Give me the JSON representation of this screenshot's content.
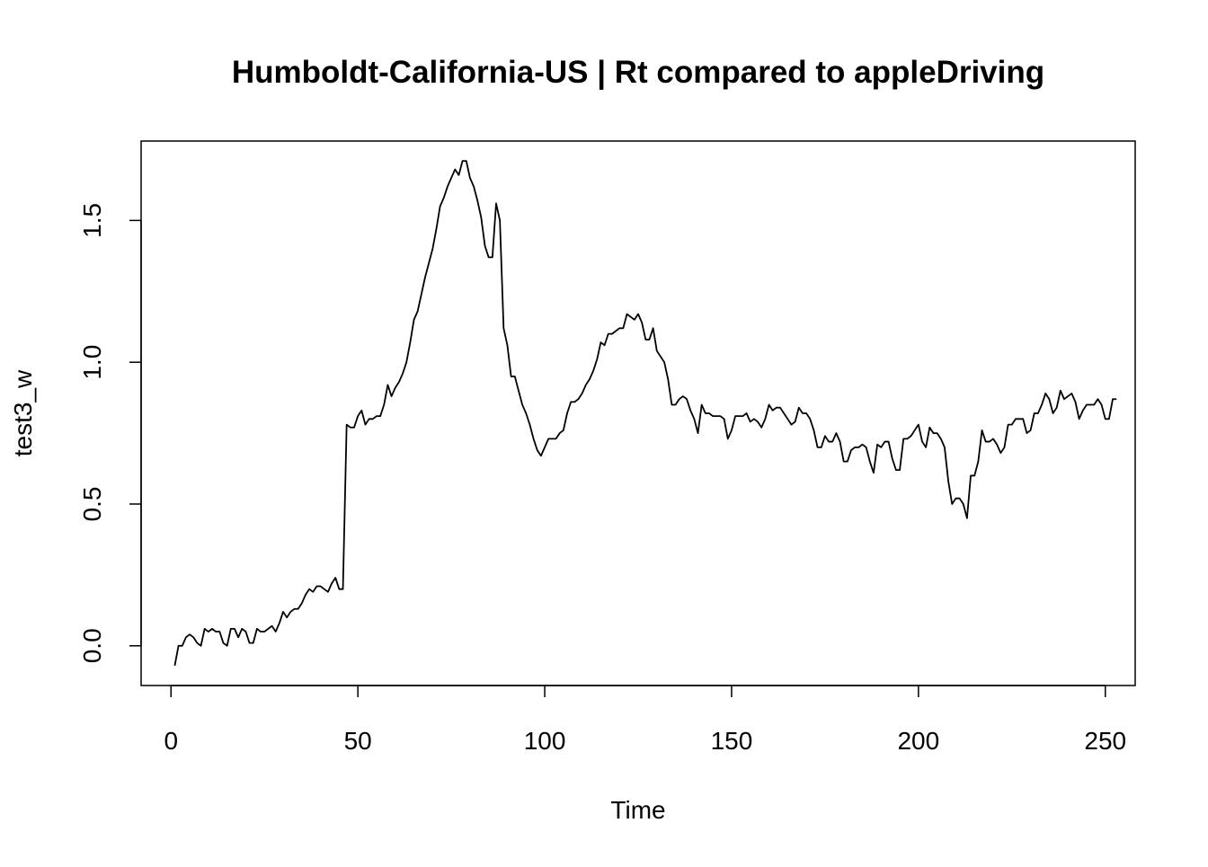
{
  "chart_data": {
    "type": "line",
    "title": "Humboldt-California-US | Rt compared to appleDriving",
    "xlabel": "Time",
    "ylabel": "test3_w",
    "xlim": [
      -8,
      258
    ],
    "ylim": [
      -0.14,
      1.78
    ],
    "x_ticks": [
      0,
      50,
      100,
      150,
      200,
      250
    ],
    "x_tick_labels": [
      "0",
      "50",
      "100",
      "150",
      "200",
      "250"
    ],
    "y_ticks": [
      0.0,
      0.5,
      1.0,
      1.5
    ],
    "y_tick_labels": [
      "0.0",
      "0.5",
      "1.0",
      "1.5"
    ],
    "grid": false,
    "line_color": "#000000",
    "series": [
      {
        "x_start": 1,
        "x_step": 1,
        "values": [
          -0.07,
          0.0,
          0.0,
          0.03,
          0.04,
          0.03,
          0.01,
          0.0,
          0.06,
          0.05,
          0.06,
          0.05,
          0.05,
          0.01,
          0.0,
          0.06,
          0.06,
          0.03,
          0.06,
          0.05,
          0.01,
          0.01,
          0.06,
          0.05,
          0.05,
          0.06,
          0.07,
          0.05,
          0.08,
          0.12,
          0.1,
          0.12,
          0.13,
          0.13,
          0.15,
          0.18,
          0.2,
          0.19,
          0.21,
          0.21,
          0.2,
          0.19,
          0.22,
          0.24,
          0.2,
          0.2,
          0.78,
          0.77,
          0.77,
          0.81,
          0.83,
          0.78,
          0.8,
          0.8,
          0.81,
          0.81,
          0.85,
          0.92,
          0.88,
          0.91,
          0.93,
          0.96,
          1.0,
          1.07,
          1.15,
          1.18,
          1.24,
          1.3,
          1.35,
          1.4,
          1.47,
          1.55,
          1.58,
          1.62,
          1.65,
          1.68,
          1.66,
          1.71,
          1.71,
          1.65,
          1.62,
          1.57,
          1.51,
          1.41,
          1.37,
          1.37,
          1.56,
          1.5,
          1.12,
          1.06,
          0.95,
          0.95,
          0.9,
          0.85,
          0.82,
          0.78,
          0.73,
          0.69,
          0.67,
          0.7,
          0.73,
          0.73,
          0.73,
          0.75,
          0.76,
          0.82,
          0.86,
          0.86,
          0.87,
          0.89,
          0.92,
          0.94,
          0.97,
          1.01,
          1.07,
          1.06,
          1.1,
          1.1,
          1.11,
          1.12,
          1.12,
          1.17,
          1.16,
          1.15,
          1.17,
          1.14,
          1.08,
          1.08,
          1.12,
          1.04,
          1.02,
          1.0,
          0.94,
          0.85,
          0.85,
          0.87,
          0.88,
          0.87,
          0.83,
          0.8,
          0.75,
          0.85,
          0.82,
          0.82,
          0.81,
          0.81,
          0.81,
          0.8,
          0.73,
          0.76,
          0.81,
          0.81,
          0.81,
          0.82,
          0.79,
          0.8,
          0.79,
          0.77,
          0.8,
          0.85,
          0.83,
          0.84,
          0.84,
          0.82,
          0.8,
          0.78,
          0.79,
          0.84,
          0.82,
          0.82,
          0.8,
          0.76,
          0.7,
          0.7,
          0.74,
          0.72,
          0.72,
          0.75,
          0.72,
          0.65,
          0.65,
          0.69,
          0.7,
          0.7,
          0.71,
          0.7,
          0.65,
          0.61,
          0.71,
          0.7,
          0.72,
          0.72,
          0.66,
          0.62,
          0.62,
          0.73,
          0.73,
          0.74,
          0.76,
          0.78,
          0.72,
          0.7,
          0.77,
          0.75,
          0.75,
          0.73,
          0.7,
          0.58,
          0.5,
          0.52,
          0.52,
          0.5,
          0.45,
          0.6,
          0.6,
          0.65,
          0.76,
          0.72,
          0.72,
          0.73,
          0.71,
          0.68,
          0.7,
          0.78,
          0.78,
          0.8,
          0.8,
          0.8,
          0.75,
          0.76,
          0.82,
          0.82,
          0.85,
          0.89,
          0.87,
          0.82,
          0.84,
          0.9,
          0.87,
          0.88,
          0.89,
          0.86,
          0.8,
          0.83,
          0.85,
          0.85,
          0.85,
          0.87,
          0.85,
          0.8,
          0.8,
          0.87,
          0.87
        ]
      }
    ]
  }
}
